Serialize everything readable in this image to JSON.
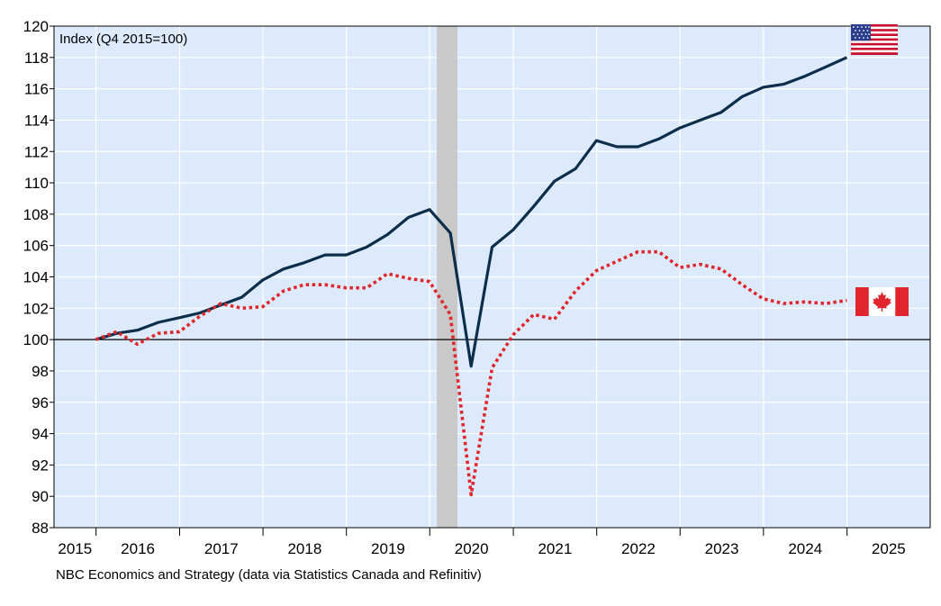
{
  "source_note": "NBC Economics and Strategy (data via Statistics Canada and Refinitiv)",
  "chart_data": {
    "type": "line",
    "title": "",
    "annotation": "Index (Q4 2015=100)",
    "xlabel": "",
    "ylabel": "",
    "x_tick_labels": [
      "2015",
      "2016",
      "2017",
      "2018",
      "2019",
      "2020",
      "2021",
      "2022",
      "2023",
      "2024",
      "2025"
    ],
    "xlim": [
      "2015-07-01",
      "2025-12-31"
    ],
    "ylim": [
      88,
      120
    ],
    "y_ticks": [
      88,
      90,
      92,
      94,
      96,
      98,
      100,
      102,
      104,
      106,
      108,
      110,
      112,
      114,
      116,
      118,
      120
    ],
    "reference_line": 100,
    "grid": true,
    "shaded_recession": [
      "2020-02-01",
      "2020-05-01"
    ],
    "x": [
      "2015-12-31",
      "2016-03-31",
      "2016-06-30",
      "2016-09-30",
      "2016-12-31",
      "2017-03-31",
      "2017-06-30",
      "2017-09-30",
      "2017-12-31",
      "2018-03-31",
      "2018-06-30",
      "2018-09-30",
      "2018-12-31",
      "2019-03-31",
      "2019-06-30",
      "2019-09-30",
      "2019-12-31",
      "2020-03-31",
      "2020-06-30",
      "2020-09-30",
      "2020-12-31",
      "2021-03-31",
      "2021-06-30",
      "2021-09-30",
      "2021-12-31",
      "2022-03-31",
      "2022-06-30",
      "2022-09-30",
      "2022-12-31",
      "2023-03-31",
      "2023-06-30",
      "2023-09-30",
      "2023-12-31",
      "2024-03-31",
      "2024-06-30",
      "2024-09-30",
      "2024-12-31"
    ],
    "series": [
      {
        "flag": "us-flag-icon",
        "color": "#0d2e4a",
        "style": "solid",
        "values": [
          100.0,
          100.4,
          100.6,
          101.1,
          101.4,
          101.7,
          102.2,
          102.7,
          103.8,
          104.5,
          104.9,
          105.4,
          105.4,
          105.9,
          106.7,
          107.8,
          108.3,
          106.8,
          98.3,
          105.9,
          107.0,
          108.5,
          110.1,
          110.9,
          112.7,
          112.3,
          112.3,
          112.8,
          113.5,
          114.0,
          114.5,
          115.5,
          116.1,
          116.3,
          116.8,
          117.4,
          118.0
        ]
      },
      {
        "flag": "canada-flag-icon",
        "color": "#e0262c",
        "style": "dotted",
        "values": [
          100.0,
          100.5,
          99.7,
          100.4,
          100.5,
          101.5,
          102.3,
          102.0,
          102.1,
          103.1,
          103.5,
          103.5,
          103.3,
          103.3,
          104.2,
          103.9,
          103.7,
          101.6,
          90.1,
          98.2,
          100.3,
          101.6,
          101.3,
          103.1,
          104.4,
          105.0,
          105.6,
          105.6,
          104.6,
          104.8,
          104.5,
          103.5,
          102.6,
          102.3,
          102.4,
          102.3,
          102.5
        ]
      }
    ]
  }
}
